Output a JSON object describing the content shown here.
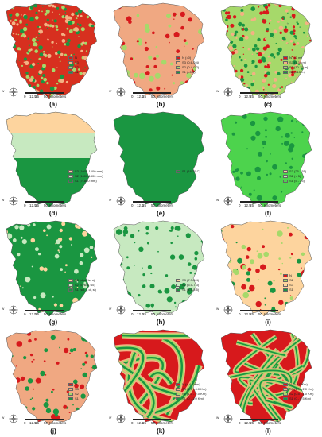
{
  "scale": {
    "ticks": [
      "0",
      "12.5",
      "25",
      "50"
    ],
    "unit": "Kilometers"
  },
  "compass": {
    "n": "N",
    "s": "S",
    "e": "E",
    "w": "W"
  },
  "panels": [
    {
      "id": "a",
      "label": "(a)",
      "legend": [
        {
          "text": "N",
          "color": "#d7191c"
        },
        {
          "text": "S3",
          "color": "#f4b183"
        },
        {
          "text": "S2",
          "color": "#a6d96a"
        },
        {
          "text": "S1",
          "color": "#1a9641"
        }
      ],
      "fill": "#d7301f",
      "pattern": [
        "#a6d96a",
        "#1a9641",
        "#f4b183"
      ]
    },
    {
      "id": "b",
      "label": "(b)",
      "legend": [
        {
          "text": "N (>0)",
          "color": "#d7191c"
        },
        {
          "text": "S3 (0.6-0.4)",
          "color": "#f4b183"
        },
        {
          "text": "S2 (0.4-0.2)",
          "color": "#a6d96a"
        },
        {
          "text": "S1 (<0.6)",
          "color": "#1a9641"
        }
      ],
      "fill": "#f0a882",
      "pattern": [
        "#d7191c",
        "#a6d96a"
      ]
    },
    {
      "id": "c",
      "label": "(c)",
      "legend": [
        {
          "text": "N (<7 m)",
          "color": "#d7191c"
        },
        {
          "text": "S3 (7-10 m)",
          "color": "#f4b183"
        },
        {
          "text": "S2 (10-15 m)",
          "color": "#a6d96a"
        },
        {
          "text": "S1 (>15 m)",
          "color": "#1a9641"
        }
      ],
      "fill": "#a6d96a",
      "pattern": [
        "#d7191c",
        "#1a9641",
        "#f4b183"
      ]
    },
    {
      "id": "d",
      "label": "(d)",
      "legend": [
        {
          "text": "S3 (1000-1600 mm)",
          "color": "#fdd49e"
        },
        {
          "text": "S2 (1600-1800 mm)",
          "color": "#c7e9c0"
        },
        {
          "text": "S1 (>1800 mm)",
          "color": "#1a9641"
        }
      ],
      "fill": "#1a9641",
      "pattern": []
    },
    {
      "id": "e",
      "label": "(e)",
      "legend": [
        {
          "text": "S1 (18-25 C)",
          "color": "#1a9641"
        }
      ],
      "fill": "#1a9641",
      "pattern": []
    },
    {
      "id": "f",
      "label": "(f)",
      "legend": [
        {
          "text": "S3 (25 - 35)",
          "color": "#fdd49e"
        },
        {
          "text": "S2 (< 5)",
          "color": "#c7e9c0"
        },
        {
          "text": "S1 (5 - 25)",
          "color": "#4dd34d"
        }
      ],
      "fill": "#4dd34d",
      "pattern": [
        "#1a9641"
      ]
    },
    {
      "id": "g",
      "label": "(g)",
      "legend": [
        {
          "text": "S3 (cbsl, ls, s)",
          "color": "#fdd49e"
        },
        {
          "text": "S2 (c, sicl, sic)",
          "color": "#c7e9c0"
        },
        {
          "text": "S1 (scl, l, cl, sl)",
          "color": "#1a9641"
        }
      ],
      "fill": "#1a9641",
      "pattern": [
        "#fdd49e",
        "#c7e9c0"
      ]
    },
    {
      "id": "h",
      "label": "(h)",
      "legend": [
        {
          "text": "S3 (7.3-8.4)",
          "color": "#fdd49e"
        },
        {
          "text": "S2 (5.5-7.3)",
          "color": "#c7e9c0"
        },
        {
          "text": "S1 (4.5-5.5)",
          "color": "#1a9641"
        }
      ],
      "fill": "#c7e9c0",
      "pattern": [
        "#1a9641"
      ]
    },
    {
      "id": "i",
      "label": "(i)",
      "legend": [
        {
          "text": "N",
          "color": "#d7191c"
        },
        {
          "text": "S2",
          "color": "#a6d96a"
        },
        {
          "text": "S3",
          "color": "#fdd49e"
        },
        {
          "text": "S1",
          "color": "#1a9641"
        }
      ],
      "fill": "#fdd49e",
      "pattern": [
        "#d7191c",
        "#1a9641",
        "#a6d96a"
      ]
    },
    {
      "id": "j",
      "label": "(j)",
      "legend": [
        {
          "text": "N",
          "color": "#d7191c"
        },
        {
          "text": "S3",
          "color": "#f4b183"
        },
        {
          "text": "S2",
          "color": "#a6d96a"
        },
        {
          "text": "S1",
          "color": "#1a9641"
        }
      ],
      "fill": "#f0a882",
      "pattern": [
        "#1a9641",
        "#d7191c"
      ]
    },
    {
      "id": "k",
      "label": "(k)",
      "legend": [
        {
          "text": "N (> 4.0 Km)",
          "color": "#d7191c"
        },
        {
          "text": "S3 (2.0 - 4.0 Km)",
          "color": "#f4b183"
        },
        {
          "text": "S2 (1.0 - 2.0 Km)",
          "color": "#a6d96a"
        },
        {
          "text": "S1 (0 - 1.0 Km)",
          "color": "#1a9641"
        }
      ],
      "fill": "#d7191c",
      "pattern": []
    },
    {
      "id": "l",
      "label": "(l)",
      "legend": [
        {
          "text": "N (> 2.0 Km)",
          "color": "#d7191c"
        },
        {
          "text": "S3 (1.0 - 2.0 Km)",
          "color": "#f4b183"
        },
        {
          "text": "S2 (0.5 - 1.0 Km)",
          "color": "#a6d96a"
        },
        {
          "text": "S1 (0 - 0.5 Km)",
          "color": "#1a9641"
        }
      ],
      "fill": "#d7191c",
      "pattern": []
    }
  ]
}
